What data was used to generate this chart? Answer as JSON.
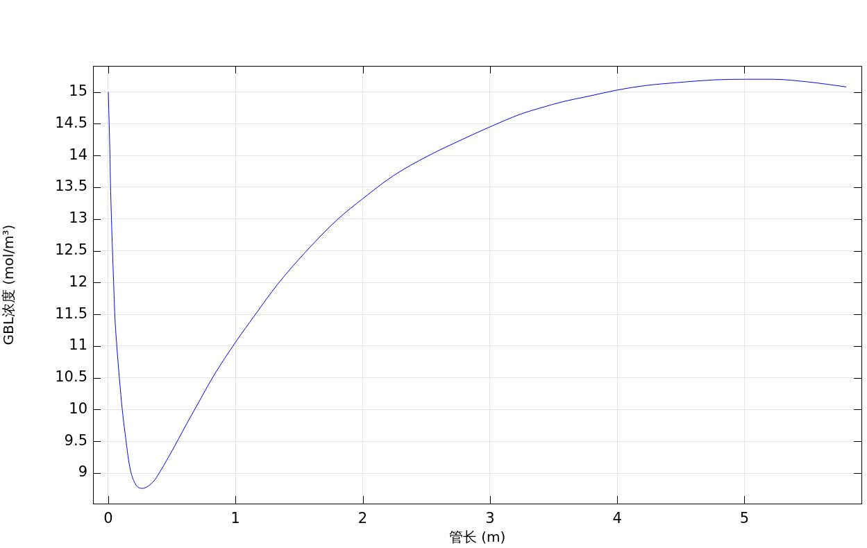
{
  "chart_data": {
    "type": "line",
    "xlabel": "管长 (m)",
    "ylabel": "GBL浓度 (mol/m³)",
    "x": [
      0,
      0.007,
      0.013,
      0.018,
      0.025,
      0.033,
      0.042,
      0.051,
      0.067,
      0.087,
      0.11,
      0.14,
      0.16,
      0.18,
      0.21,
      0.24,
      0.27,
      0.31,
      0.36,
      0.4,
      0.47,
      0.55,
      0.62,
      0.69,
      0.77,
      0.84,
      1.0,
      1.15,
      1.33,
      1.55,
      1.8,
      2.0,
      2.24,
      2.51,
      2.78,
      3.0,
      3.24,
      3.4,
      3.58,
      3.77,
      4.0,
      4.22,
      4.49,
      4.76,
      5.0,
      5.22,
      5.49,
      5.8
    ],
    "series": [
      {
        "color": "#0000ff",
        "values": [
          15.0,
          14.5,
          14.0,
          13.5,
          13.0,
          12.5,
          12.0,
          11.5,
          11.0,
          10.5,
          10.0,
          9.5,
          9.2,
          9.0,
          8.84,
          8.77,
          8.76,
          8.79,
          8.88,
          9.0,
          9.24,
          9.53,
          9.79,
          10.04,
          10.33,
          10.57,
          11.06,
          11.48,
          11.97,
          12.48,
          12.99,
          13.32,
          13.68,
          13.99,
          14.25,
          14.45,
          14.65,
          14.75,
          14.85,
          14.93,
          15.03,
          15.1,
          15.15,
          15.19,
          15.2,
          15.2,
          15.16,
          15.08
        ]
      }
    ],
    "xlim": [
      -0.12,
      5.92
    ],
    "ylim": [
      8.52,
      15.41
    ],
    "xticks": [
      0,
      1,
      2,
      3,
      4,
      5
    ],
    "yticks": [
      9,
      9.5,
      10,
      10.5,
      11,
      11.5,
      12,
      12.5,
      13,
      13.5,
      14,
      14.5,
      15
    ],
    "grid": true,
    "marker": "none",
    "line_style": "solid"
  }
}
